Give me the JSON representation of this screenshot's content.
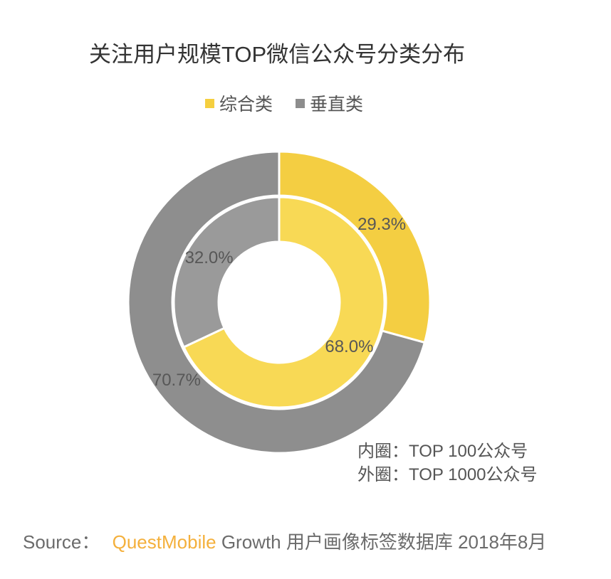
{
  "chart_data": {
    "type": "pie",
    "title": "关注用户规模TOP微信公众号分类分布",
    "categories": [
      "综合类",
      "垂直类"
    ],
    "legend": {
      "position": "top",
      "colors": [
        "#F5CF3F",
        "#8D8D8D"
      ]
    },
    "inner_ring": {
      "values": [
        68.0,
        32.0
      ],
      "labels": [
        "68.0%",
        "32.0%"
      ],
      "colors": [
        "#F8D955",
        "#9A9A9A"
      ]
    },
    "outer_ring": {
      "values": [
        29.3,
        70.7
      ],
      "labels": [
        "29.3%",
        "70.7%"
      ],
      "colors": [
        "#F4CE42",
        "#8E8E8E"
      ]
    },
    "annotations": [
      "内圈：TOP 100公众号",
      "外圈：TOP 1000公众号"
    ]
  },
  "source": {
    "prefix": "Source：",
    "brand": "QuestMobile",
    "rest": "Growth 用户画像标签数据库 2018年8月",
    "brand_color": "#F4B03C"
  }
}
